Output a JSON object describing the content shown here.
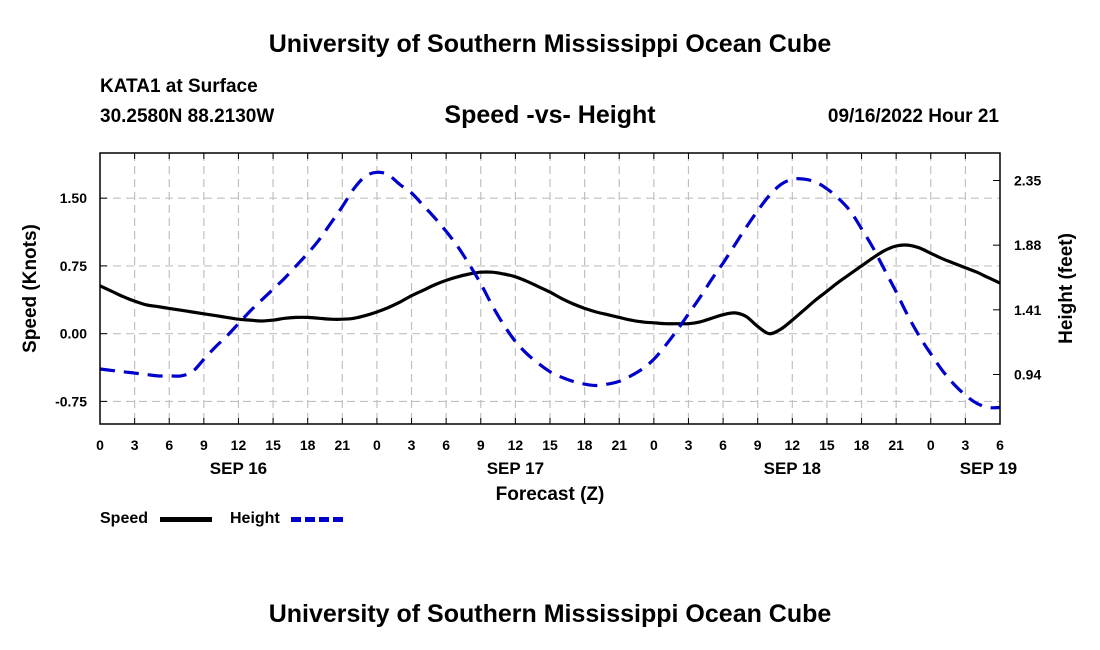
{
  "header": {
    "title": "University of Southern Mississippi Ocean Cube",
    "station": "KATA1 at Surface",
    "coords": "30.2580N  88.2130W",
    "subtitle": "Speed -vs- Height",
    "datetime": "09/16/2022 Hour 21"
  },
  "footer": {
    "title": "University of Southern Mississippi Ocean Cube"
  },
  "legend": {
    "speed": "Speed",
    "height": "Height"
  },
  "chart_data": {
    "type": "line",
    "title": "Speed -vs- Height",
    "xlabel": "Forecast (Z)",
    "ylabel_left": "Speed (Knots)",
    "ylabel_right": "Height (feet)",
    "x_range": [
      0,
      78
    ],
    "left_ylim": [
      -1.0,
      2.0
    ],
    "right_ylim": [
      0.58,
      2.55
    ],
    "grid": true,
    "x_ticks": [
      0,
      3,
      6,
      9,
      12,
      15,
      18,
      21,
      24,
      27,
      30,
      33,
      36,
      39,
      42,
      45,
      48,
      51,
      54,
      57,
      60,
      63,
      66,
      69,
      72,
      75,
      78
    ],
    "x_tick_labels": [
      "0",
      "3",
      "6",
      "9",
      "12",
      "15",
      "18",
      "21",
      "0",
      "3",
      "6",
      "9",
      "12",
      "15",
      "18",
      "21",
      "0",
      "3",
      "6",
      "9",
      "12",
      "15",
      "18",
      "21",
      "0",
      "3",
      "6"
    ],
    "day_labels": [
      {
        "x": 12,
        "label": "SEP 16"
      },
      {
        "x": 36,
        "label": "SEP 17"
      },
      {
        "x": 60,
        "label": "SEP 18"
      },
      {
        "x": 77,
        "label": "SEP 19"
      }
    ],
    "left_ticks": [
      -0.75,
      0.0,
      0.75,
      1.5
    ],
    "left_tick_labels": [
      "-0.75",
      "0.00",
      "0.75",
      "1.50"
    ],
    "right_ticks": [
      0.94,
      1.41,
      1.88,
      2.35
    ],
    "right_tick_labels": [
      "0.94",
      "1.41",
      "1.88",
      "2.35"
    ],
    "series": [
      {
        "name": "Speed",
        "axis": "left",
        "color": "#000000",
        "style": "solid",
        "x": [
          0,
          1,
          2,
          3,
          4,
          5,
          6,
          7,
          8,
          9,
          10,
          11,
          12,
          13,
          14,
          15,
          16,
          17,
          18,
          19,
          20,
          21,
          22,
          23,
          24,
          25,
          26,
          27,
          28,
          29,
          30,
          31,
          32,
          33,
          34,
          35,
          36,
          37,
          38,
          39,
          40,
          41,
          42,
          43,
          44,
          45,
          46,
          47,
          48,
          49,
          50,
          51,
          52,
          53,
          54,
          55,
          56,
          57,
          58,
          59,
          60,
          61,
          62,
          63,
          64,
          65,
          66,
          67,
          68,
          69,
          70,
          71,
          72,
          73,
          74,
          75,
          76,
          77,
          78
        ],
        "values": [
          0.53,
          0.47,
          0.41,
          0.36,
          0.32,
          0.3,
          0.28,
          0.26,
          0.24,
          0.22,
          0.2,
          0.18,
          0.16,
          0.15,
          0.14,
          0.15,
          0.17,
          0.18,
          0.18,
          0.17,
          0.16,
          0.16,
          0.17,
          0.2,
          0.24,
          0.29,
          0.35,
          0.42,
          0.48,
          0.54,
          0.59,
          0.63,
          0.66,
          0.68,
          0.68,
          0.66,
          0.63,
          0.58,
          0.52,
          0.46,
          0.39,
          0.33,
          0.28,
          0.24,
          0.21,
          0.18,
          0.15,
          0.13,
          0.12,
          0.11,
          0.11,
          0.11,
          0.13,
          0.17,
          0.21,
          0.23,
          0.19,
          0.08,
          0.0,
          0.05,
          0.15,
          0.26,
          0.37,
          0.47,
          0.57,
          0.66,
          0.75,
          0.84,
          0.92,
          0.97,
          0.98,
          0.95,
          0.89,
          0.83,
          0.78,
          0.73,
          0.68,
          0.62,
          0.56
        ]
      },
      {
        "name": "Height",
        "axis": "right",
        "color": "#0000cc",
        "style": "dashed",
        "x": [
          0,
          1,
          2,
          3,
          4,
          5,
          6,
          7,
          8,
          9,
          10,
          11,
          12,
          13,
          14,
          15,
          16,
          17,
          18,
          19,
          20,
          21,
          22,
          23,
          24,
          25,
          26,
          27,
          28,
          29,
          30,
          31,
          32,
          33,
          34,
          35,
          36,
          37,
          38,
          39,
          40,
          41,
          42,
          43,
          44,
          45,
          46,
          47,
          48,
          49,
          50,
          51,
          52,
          53,
          54,
          55,
          56,
          57,
          58,
          59,
          60,
          61,
          62,
          63,
          64,
          65,
          66,
          67,
          68,
          69,
          70,
          71,
          72,
          73,
          74,
          75,
          76,
          77,
          78
        ],
        "values": [
          0.98,
          0.97,
          0.96,
          0.95,
          0.94,
          0.93,
          0.93,
          0.93,
          0.96,
          1.05,
          1.14,
          1.22,
          1.31,
          1.4,
          1.48,
          1.56,
          1.64,
          1.73,
          1.82,
          1.92,
          2.04,
          2.16,
          2.29,
          2.38,
          2.41,
          2.39,
          2.32,
          2.26,
          2.17,
          2.08,
          1.98,
          1.87,
          1.74,
          1.6,
          1.44,
          1.3,
          1.18,
          1.09,
          1.02,
          0.96,
          0.92,
          0.89,
          0.87,
          0.86,
          0.87,
          0.89,
          0.93,
          0.98,
          1.05,
          1.15,
          1.26,
          1.38,
          1.5,
          1.63,
          1.75,
          1.88,
          2.01,
          2.13,
          2.24,
          2.32,
          2.36,
          2.36,
          2.34,
          2.29,
          2.22,
          2.13,
          2.0,
          1.86,
          1.7,
          1.54,
          1.37,
          1.22,
          1.09,
          0.97,
          0.87,
          0.79,
          0.73,
          0.7,
          0.7
        ]
      }
    ]
  }
}
